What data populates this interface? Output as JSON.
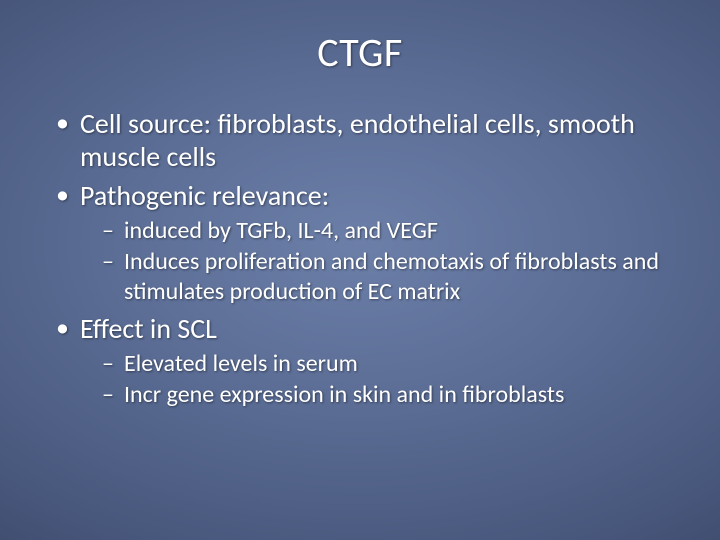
{
  "slide": {
    "background": {
      "type": "radial-gradient",
      "center_color": "#6c7fa8",
      "mid1_color": "#5b6d95",
      "mid2_color": "#48577c",
      "outer_color": "#323d5a",
      "edge_color": "#1e2538"
    },
    "text_color": "#ffffff",
    "title": "CTGF",
    "title_fontsize": 40,
    "bullets": [
      {
        "text": "Cell source: fibroblasts, endothelial cells, smooth muscle cells",
        "fontsize": 28,
        "children": []
      },
      {
        "text": "Pathogenic relevance:",
        "fontsize": 28,
        "children": [
          {
            "text": "induced by TGFb, IL-4, and VEGF",
            "fontsize": 24
          },
          {
            "text": "Induces proliferation and chemotaxis of fibroblasts and stimulates production of EC matrix",
            "fontsize": 24
          }
        ]
      },
      {
        "text": "Effect in SCL",
        "fontsize": 28,
        "children": [
          {
            "text": "Elevated levels in serum",
            "fontsize": 24
          },
          {
            "text": "Incr gene expression in skin and in fibroblasts",
            "fontsize": 24
          }
        ]
      }
    ]
  }
}
